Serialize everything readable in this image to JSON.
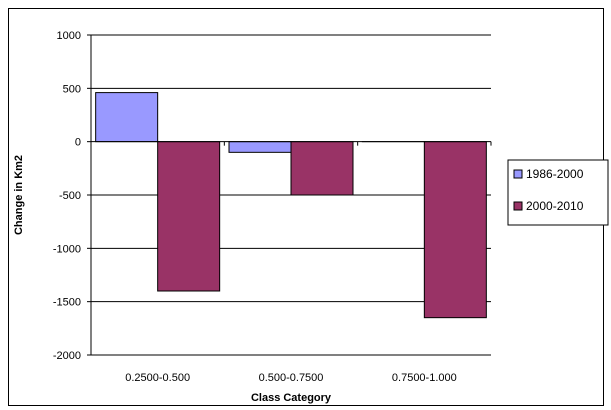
{
  "chart_data": {
    "type": "bar",
    "categories": [
      "0.2500-0.500",
      "0.500-0.7500",
      "0.7500-1.000"
    ],
    "series": [
      {
        "name": "1986-2000",
        "values": [
          460,
          -100,
          0
        ],
        "color": "#9999ff"
      },
      {
        "name": "2000-2010",
        "values": [
          -1400,
          -500,
          -1650
        ],
        "color": "#993366"
      }
    ],
    "xlabel": "Class Category",
    "ylabel": "Change in Km2",
    "ylim": [
      -2000,
      1000
    ],
    "yticks": [
      1000,
      500,
      0,
      -500,
      -1000,
      -1500,
      -2000
    ],
    "grid": true,
    "legend_position": "right"
  }
}
